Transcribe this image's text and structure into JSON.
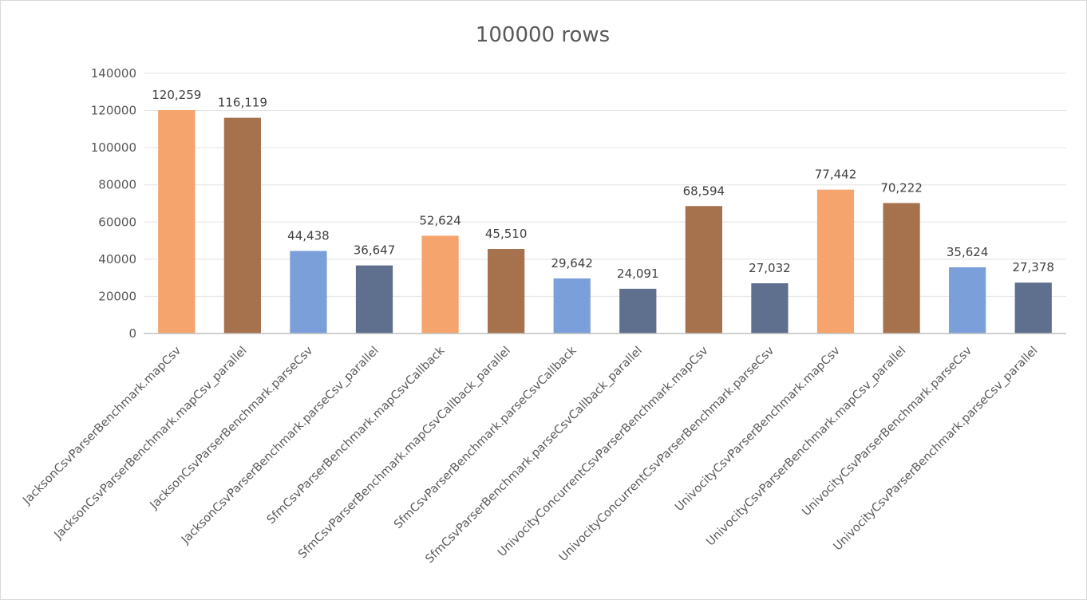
{
  "chart_data": {
    "type": "bar",
    "title": "100000 rows",
    "xlabel": "",
    "ylabel": "",
    "ylim": [
      0,
      140000
    ],
    "yticks": [
      0,
      20000,
      40000,
      60000,
      80000,
      100000,
      120000,
      140000
    ],
    "ytick_labels": [
      "0",
      "20000",
      "40000",
      "60000",
      "80000",
      "100000",
      "120000",
      "140000"
    ],
    "grid": true,
    "legend": "none",
    "categories": [
      "JacksonCsvParserBenchmark.mapCsv",
      "JacksonCsvParserBenchmark.mapCsv_parallel",
      "JacksonCsvParserBenchmark.parseCsv",
      "JacksonCsvParserBenchmark.parseCsv_parallel",
      "SfmCsvParserBenchmark.mapCsvCallback",
      "SfmCsvParserBenchmark.mapCsvCallback_parallel",
      "SfmCsvParserBenchmark.parseCsvCallback",
      "SfmCsvParserBenchmark.parseCsvCallback_parallel",
      "UnivocityConcurrentCsvParserBenchmark.mapCsv",
      "UnivocityConcurrentCsvParserBenchmark.parseCsv",
      "UnivocityCsvParserBenchmark.mapCsv",
      "UnivocityCsvParserBenchmark.mapCsv_parallel",
      "UnivocityCsvParserBenchmark.parseCsv",
      "UnivocityCsvParserBenchmark.parseCsv_parallel"
    ],
    "values": [
      120259,
      116119,
      44438,
      36647,
      52624,
      45510,
      29642,
      24091,
      68594,
      27032,
      77442,
      70222,
      35624,
      27378
    ],
    "value_labels": [
      "120,259",
      "116,119",
      "44,438",
      "36,647",
      "52,624",
      "45,510",
      "29,642",
      "24,091",
      "68,594",
      "27,032",
      "77,442",
      "70,222",
      "35,624",
      "27,378"
    ],
    "colors": [
      "#f4a46c",
      "#a6714d",
      "#7b9fd9",
      "#5f6f8e",
      "#f4a46c",
      "#a6714d",
      "#7b9fd9",
      "#5f6f8e",
      "#a6714d",
      "#5f6f8e",
      "#f4a46c",
      "#a6714d",
      "#7b9fd9",
      "#5f6f8e"
    ],
    "gridline_color": "#e3e3e3",
    "axis_color": "#bfbfbf"
  }
}
